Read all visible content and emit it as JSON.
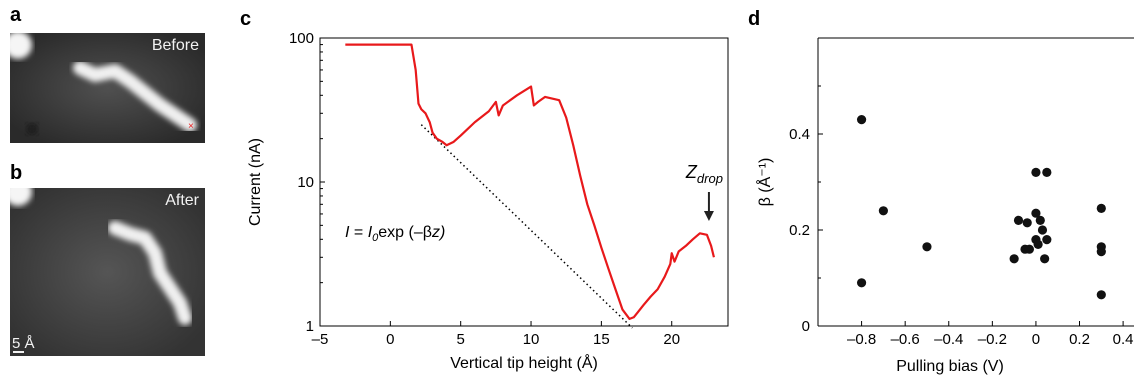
{
  "panels": {
    "a": {
      "letter": "a",
      "image_label": "Before"
    },
    "b": {
      "letter": "b",
      "image_label": "After",
      "scale_label": "5 Å"
    },
    "c": {
      "letter": "c"
    },
    "d": {
      "letter": "d"
    }
  },
  "chart_data": [
    {
      "panel": "c",
      "type": "line",
      "xlabel": "Vertical tip height (Å)",
      "ylabel": "Current (nA)",
      "xlim": [
        -5,
        24
      ],
      "ylim": [
        1,
        100
      ],
      "yscale": "log",
      "xticks": [
        "–5",
        "0",
        "5",
        "10",
        "15",
        "20"
      ],
      "xtick_values": [
        -5,
        0,
        5,
        10,
        15,
        20
      ],
      "yticks": [
        "1",
        "10",
        "100"
      ],
      "ytick_values": [
        1,
        10,
        100
      ],
      "series": [
        {
          "color": "#e8191b",
          "x": [
            -3.2,
            1.5,
            1.8,
            2.0,
            2.2,
            2.5,
            2.8,
            3.0,
            3.3,
            3.7,
            4.0,
            4.5,
            5.0,
            6.0,
            7.0,
            7.5,
            7.7,
            8.0,
            9.0,
            10.0,
            10.2,
            10.5,
            11.0,
            12.0,
            12.5,
            13.0,
            13.5,
            14.0,
            14.5,
            15.0,
            15.5,
            16.0,
            16.5,
            17.0,
            17.3,
            17.6,
            18.0,
            18.5,
            19.0,
            19.5,
            19.9,
            20.0,
            20.2,
            20.5,
            21.0,
            21.5,
            22.0,
            22.5,
            22.8,
            23.0
          ],
          "y": [
            90,
            90,
            60,
            35,
            32,
            30,
            26,
            22,
            20,
            19,
            18,
            19,
            21,
            26,
            31,
            36,
            29,
            34,
            40,
            46,
            34,
            36,
            39,
            37,
            28,
            18,
            11,
            7,
            5,
            3.5,
            2.5,
            1.8,
            1.3,
            1.12,
            1.15,
            1.25,
            1.4,
            1.6,
            1.8,
            2.2,
            2.7,
            3.2,
            2.8,
            3.3,
            3.6,
            4.0,
            4.4,
            4.3,
            3.6,
            3.0
          ]
        }
      ],
      "fit_line": {
        "style": "dotted",
        "x": [
          2.2,
          17.2
        ],
        "y": [
          25,
          0.97
        ]
      },
      "annotations": {
        "equation": {
          "I": "I",
          "eq": " = ",
          "I0": "I",
          "sub0": "0",
          "exp_open": "exp (–",
          "beta": "β",
          "z_close": "z)"
        },
        "zdrop": {
          "Z": "Z",
          "sub": "drop",
          "x": 23
        }
      }
    },
    {
      "panel": "d",
      "type": "scatter",
      "xlabel": "Pulling bias (V)",
      "ylabel": "β (Å⁻¹)",
      "xlim": [
        -1.0,
        0.45
      ],
      "ylim": [
        0,
        0.6
      ],
      "xticks": [
        "–0.8",
        "–0.6",
        "–0.4",
        "–0.2",
        "0",
        "0.2",
        "0.4"
      ],
      "xtick_values": [
        -0.8,
        -0.6,
        -0.4,
        -0.2,
        0,
        0.2,
        0.4
      ],
      "yticks": [
        "0",
        "0.2",
        "0.4"
      ],
      "ytick_values": [
        0,
        0.2,
        0.4
      ],
      "points": [
        [
          -0.8,
          0.43
        ],
        [
          -0.8,
          0.09
        ],
        [
          -0.7,
          0.24
        ],
        [
          -0.5,
          0.165
        ],
        [
          -0.1,
          0.14
        ],
        [
          -0.08,
          0.22
        ],
        [
          -0.05,
          0.16
        ],
        [
          -0.04,
          0.215
        ],
        [
          -0.03,
          0.16
        ],
        [
          0.0,
          0.32
        ],
        [
          0.0,
          0.235
        ],
        [
          0.0,
          0.18
        ],
        [
          0.01,
          0.17
        ],
        [
          0.02,
          0.22
        ],
        [
          0.03,
          0.2
        ],
        [
          0.04,
          0.14
        ],
        [
          0.05,
          0.32
        ],
        [
          0.05,
          0.18
        ],
        [
          0.3,
          0.245
        ],
        [
          0.3,
          0.165
        ],
        [
          0.3,
          0.155
        ],
        [
          0.3,
          0.065
        ]
      ]
    }
  ]
}
